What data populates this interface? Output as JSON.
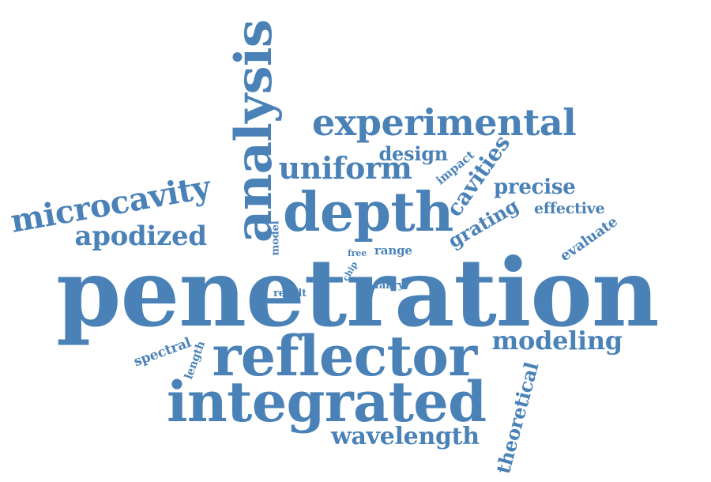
{
  "cloud": {
    "color": "#4a82b8",
    "words": [
      {
        "text": "penetration",
        "weight": 10,
        "orientation": "horizontal"
      },
      {
        "text": "integrated",
        "weight": 7,
        "orientation": "horizontal"
      },
      {
        "text": "reflector",
        "weight": 7,
        "orientation": "horizontal"
      },
      {
        "text": "depth",
        "weight": 7,
        "orientation": "horizontal"
      },
      {
        "text": "analysis",
        "weight": 7,
        "orientation": "vertical"
      },
      {
        "text": "experimental",
        "weight": 5,
        "orientation": "horizontal"
      },
      {
        "text": "microcavity",
        "weight": 4,
        "orientation": "tilted"
      },
      {
        "text": "uniform",
        "weight": 4,
        "orientation": "horizontal"
      },
      {
        "text": "apodized",
        "weight": 4,
        "orientation": "horizontal"
      },
      {
        "text": "modeling",
        "weight": 3,
        "orientation": "horizontal"
      },
      {
        "text": "wavelength",
        "weight": 3,
        "orientation": "horizontal"
      },
      {
        "text": "theoretical",
        "weight": 3,
        "orientation": "vertical"
      },
      {
        "text": "precise",
        "weight": 3,
        "orientation": "horizontal"
      },
      {
        "text": "cavities",
        "weight": 3,
        "orientation": "tilted"
      },
      {
        "text": "grating",
        "weight": 3,
        "orientation": "tilted"
      },
      {
        "text": "design",
        "weight": 2,
        "orientation": "horizontal"
      },
      {
        "text": "effective",
        "weight": 2,
        "orientation": "horizontal"
      },
      {
        "text": "evaluate",
        "weight": 2,
        "orientation": "tilted"
      },
      {
        "text": "spectral",
        "weight": 2,
        "orientation": "tilted"
      },
      {
        "text": "impact",
        "weight": 1,
        "orientation": "tilted"
      },
      {
        "text": "length",
        "weight": 1,
        "orientation": "vertical"
      },
      {
        "text": "range",
        "weight": 1,
        "orientation": "horizontal"
      },
      {
        "text": "model",
        "weight": 1,
        "orientation": "vertical"
      },
      {
        "text": "free",
        "weight": 1,
        "orientation": "horizontal"
      },
      {
        "text": "chip",
        "weight": 1,
        "orientation": "tilted"
      },
      {
        "text": "result",
        "weight": 1,
        "orientation": "horizontal"
      },
      {
        "text": "fabry",
        "weight": 1,
        "orientation": "horizontal"
      }
    ]
  }
}
